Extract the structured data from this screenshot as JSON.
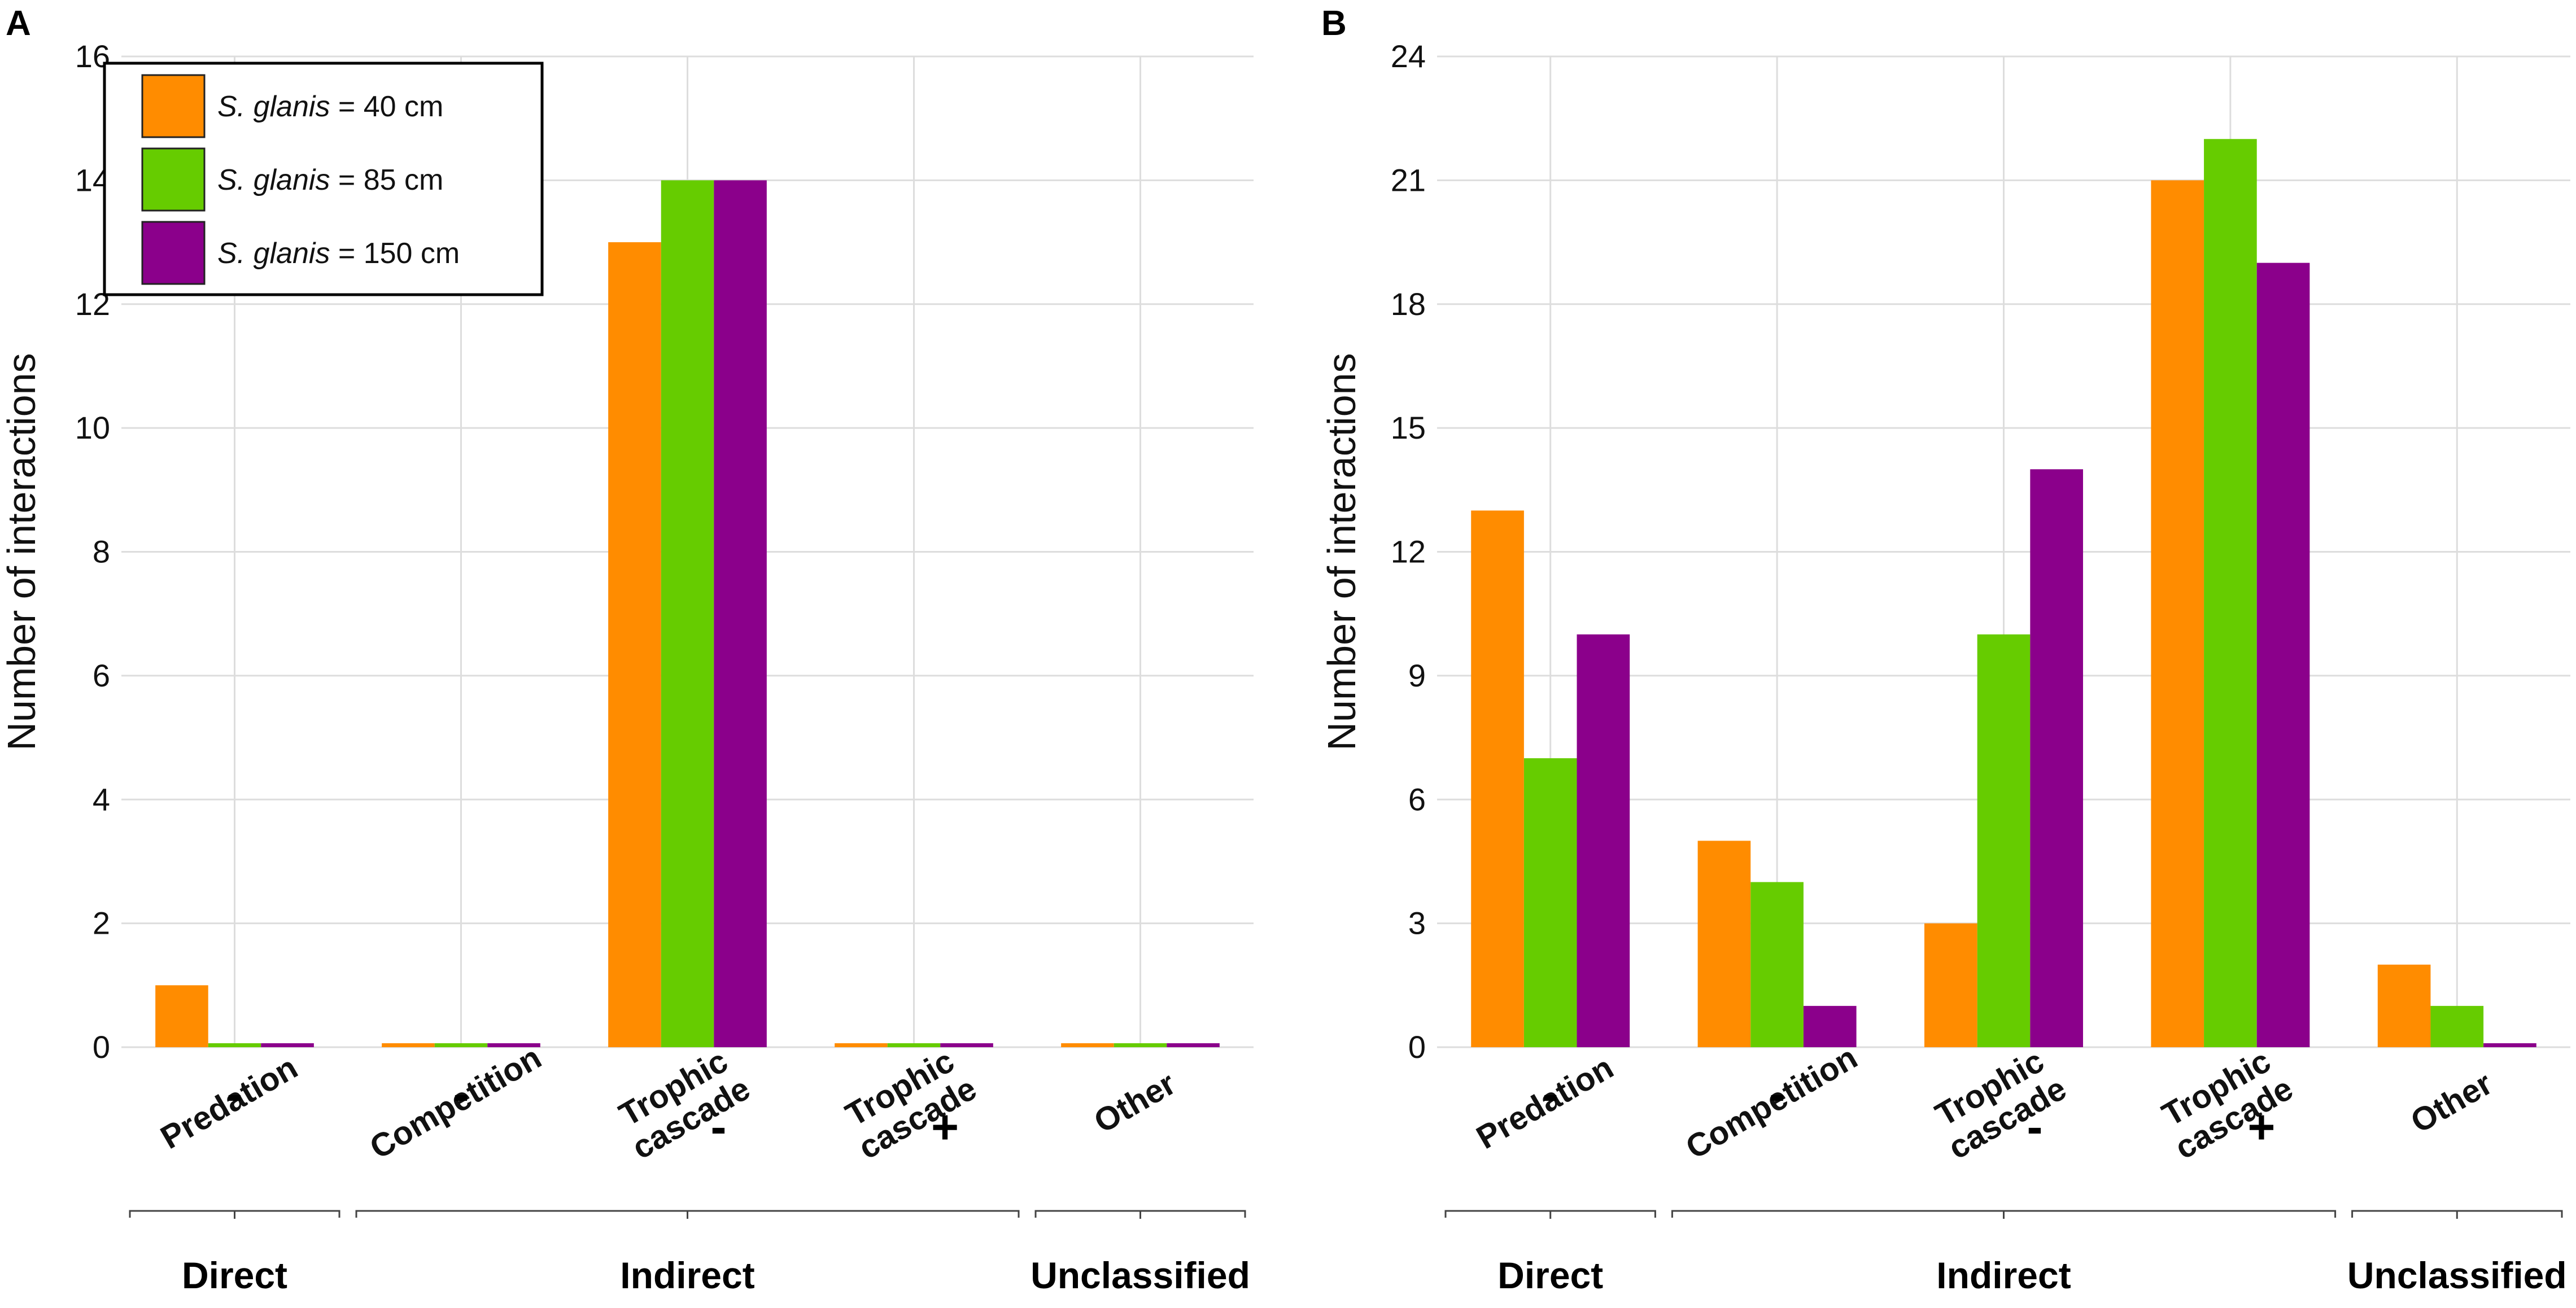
{
  "colors": {
    "s40": "#ff8c00",
    "s85": "#66cc00",
    "s150": "#8b008b"
  },
  "legend": {
    "species": "S. glanis",
    "entries": [
      {
        "key": "s40",
        "suffix": " = 40 cm"
      },
      {
        "key": "s85",
        "suffix": " = 85 cm"
      },
      {
        "key": "s150",
        "suffix": " = 150 cm"
      }
    ]
  },
  "chart_data": [
    {
      "panel": "A",
      "type": "bar",
      "ylabel": "Number of interactions",
      "ylim": [
        0,
        16
      ],
      "yticks": [
        0,
        2,
        4,
        6,
        8,
        10,
        12,
        14,
        16
      ],
      "categories": [
        {
          "name": "Predation",
          "sign": "-"
        },
        {
          "name": "Competition",
          "sign": "-"
        },
        {
          "name": "Trophic cascade",
          "sign": "-"
        },
        {
          "name": "Trophic cascade",
          "sign": "+"
        },
        {
          "name": "Other",
          "sign": ""
        }
      ],
      "series": [
        {
          "name": "S. glanis = 40 cm",
          "key": "s40",
          "values": [
            1,
            0,
            13,
            0,
            0
          ]
        },
        {
          "name": "S. glanis = 85 cm",
          "key": "s85",
          "values": [
            0,
            0,
            14,
            0,
            0
          ]
        },
        {
          "name": "S. glanis = 150 cm",
          "key": "s150",
          "values": [
            0,
            0,
            14,
            0,
            0
          ]
        }
      ],
      "groups": [
        {
          "label": "Direct",
          "from": 0,
          "to": 0
        },
        {
          "label": "Indirect",
          "from": 1,
          "to": 3
        },
        {
          "label": "Unclassified",
          "from": 4,
          "to": 4
        }
      ],
      "legend_position": "top-left"
    },
    {
      "panel": "B",
      "type": "bar",
      "ylabel": "Number of interactions",
      "ylim": [
        0,
        24
      ],
      "yticks": [
        0,
        3,
        6,
        9,
        12,
        15,
        18,
        21,
        24
      ],
      "categories": [
        {
          "name": "Predation",
          "sign": "-"
        },
        {
          "name": "Competition",
          "sign": "-"
        },
        {
          "name": "Trophic cascade",
          "sign": "-"
        },
        {
          "name": "Trophic cascade",
          "sign": "+"
        },
        {
          "name": "Other",
          "sign": ""
        }
      ],
      "series": [
        {
          "name": "S. glanis = 40 cm",
          "key": "s40",
          "values": [
            13,
            5,
            3,
            21,
            2
          ]
        },
        {
          "name": "S. glanis = 85 cm",
          "key": "s85",
          "values": [
            7,
            4,
            10,
            22,
            1
          ]
        },
        {
          "name": "S. glanis = 150 cm",
          "key": "s150",
          "values": [
            10,
            1,
            14,
            19,
            0
          ]
        }
      ],
      "groups": [
        {
          "label": "Direct",
          "from": 0,
          "to": 0
        },
        {
          "label": "Indirect",
          "from": 1,
          "to": 3
        },
        {
          "label": "Unclassified",
          "from": 4,
          "to": 4
        }
      ]
    }
  ]
}
